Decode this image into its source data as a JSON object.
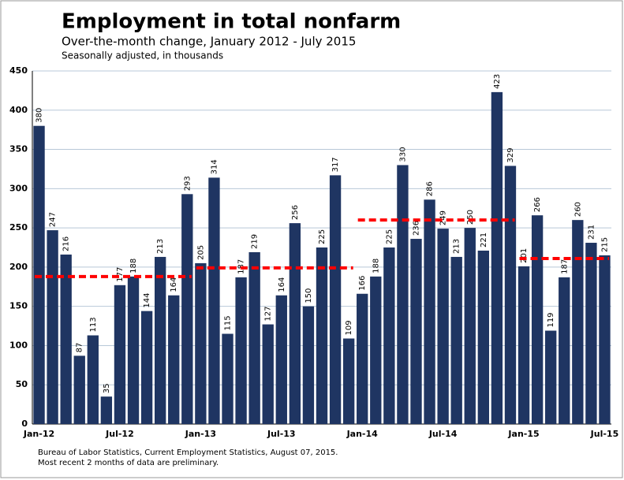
{
  "chart_data": {
    "type": "bar",
    "title": "Employment in total nonfarm",
    "subtitles": [
      "Over-the-month change, January 2012 - July 2015",
      "Seasonally adjusted, in thousands"
    ],
    "notes": [
      "Bureau of Labor Statistics, Current Employment Statistics, August 07, 2015.",
      "Most recent 2 months of data are preliminary."
    ],
    "categories": [
      "Jan-12",
      null,
      null,
      null,
      null,
      null,
      "Jul-12",
      null,
      null,
      null,
      null,
      null,
      "Jan-13",
      null,
      null,
      null,
      null,
      null,
      "Jul-13",
      null,
      null,
      null,
      null,
      null,
      "Jan-14",
      null,
      null,
      null,
      null,
      null,
      "Jul-14",
      null,
      null,
      null,
      null,
      null,
      "Jan-15",
      null,
      null,
      null,
      null,
      null,
      "Jul-15"
    ],
    "values": [
      380,
      247,
      216,
      87,
      113,
      35,
      177,
      188,
      144,
      213,
      164,
      293,
      205,
      314,
      115,
      187,
      219,
      127,
      164,
      256,
      150,
      225,
      317,
      109,
      166,
      188,
      225,
      330,
      236,
      286,
      249,
      213,
      250,
      221,
      423,
      329,
      201,
      266,
      119,
      187,
      260,
      231,
      215
    ],
    "color": "#1f3562",
    "averages": {
      "color": "#ff0000",
      "values": [
        188,
        199,
        260,
        211
      ]
    },
    "ylim": [
      0,
      450
    ],
    "yticks": [
      0,
      50,
      100,
      150,
      200,
      250,
      300,
      350,
      400,
      450
    ],
    "grid": true
  }
}
